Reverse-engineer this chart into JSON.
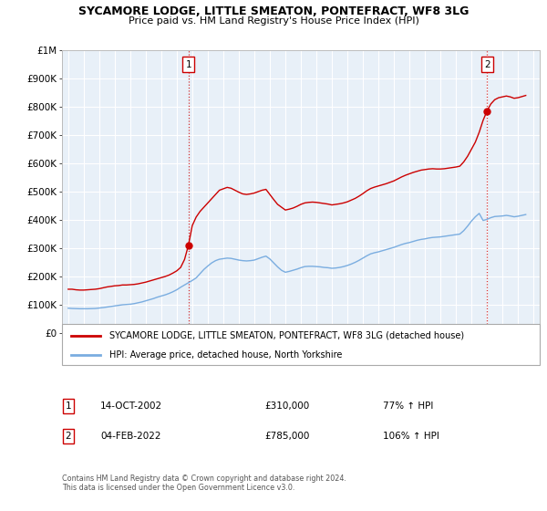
{
  "title": "SYCAMORE LODGE, LITTLE SMEATON, PONTEFRACT, WF8 3LG",
  "subtitle": "Price paid vs. HM Land Registry's House Price Index (HPI)",
  "ylim": [
    0,
    1000000
  ],
  "yticks": [
    0,
    100000,
    200000,
    300000,
    400000,
    500000,
    600000,
    700000,
    800000,
    900000,
    1000000
  ],
  "ytick_labels": [
    "£0",
    "£100K",
    "£200K",
    "£300K",
    "£400K",
    "£500K",
    "£600K",
    "£700K",
    "£800K",
    "£900K",
    "£1M"
  ],
  "red_line_color": "#cc0000",
  "blue_line_color": "#7aade0",
  "chart_bg_color": "#e8f0f8",
  "background_color": "#ffffff",
  "grid_color": "#ffffff",
  "legend_label_red": "SYCAMORE LODGE, LITTLE SMEATON, PONTEFRACT, WF8 3LG (detached house)",
  "legend_label_blue": "HPI: Average price, detached house, North Yorkshire",
  "footnote": "Contains HM Land Registry data © Crown copyright and database right 2024.\nThis data is licensed under the Open Government Licence v3.0.",
  "sale1_label": "1",
  "sale1_date": "14-OCT-2002",
  "sale1_price": "£310,000",
  "sale1_hpi": "77% ↑ HPI",
  "sale2_label": "2",
  "sale2_date": "04-FEB-2022",
  "sale2_price": "£785,000",
  "sale2_hpi": "106% ↑ HPI",
  "red_hpi_data": [
    [
      1995.0,
      155000
    ],
    [
      1995.25,
      155000
    ],
    [
      1995.5,
      153000
    ],
    [
      1995.75,
      152000
    ],
    [
      1996.0,
      152000
    ],
    [
      1996.25,
      153000
    ],
    [
      1996.5,
      154000
    ],
    [
      1996.75,
      155000
    ],
    [
      1997.0,
      157000
    ],
    [
      1997.25,
      160000
    ],
    [
      1997.5,
      163000
    ],
    [
      1997.75,
      165000
    ],
    [
      1998.0,
      167000
    ],
    [
      1998.25,
      168000
    ],
    [
      1998.5,
      170000
    ],
    [
      1998.75,
      170000
    ],
    [
      1999.0,
      171000
    ],
    [
      1999.25,
      172000
    ],
    [
      1999.5,
      174000
    ],
    [
      1999.75,
      177000
    ],
    [
      2000.0,
      180000
    ],
    [
      2000.25,
      184000
    ],
    [
      2000.5,
      188000
    ],
    [
      2000.75,
      192000
    ],
    [
      2001.0,
      196000
    ],
    [
      2001.25,
      200000
    ],
    [
      2001.5,
      205000
    ],
    [
      2001.75,
      212000
    ],
    [
      2002.0,
      220000
    ],
    [
      2002.25,
      232000
    ],
    [
      2002.5,
      260000
    ],
    [
      2002.75,
      310000
    ],
    [
      2003.0,
      380000
    ],
    [
      2003.25,
      410000
    ],
    [
      2003.5,
      430000
    ],
    [
      2003.75,
      445000
    ],
    [
      2004.0,
      460000
    ],
    [
      2004.25,
      475000
    ],
    [
      2004.5,
      490000
    ],
    [
      2004.75,
      505000
    ],
    [
      2005.0,
      510000
    ],
    [
      2005.25,
      515000
    ],
    [
      2005.5,
      512000
    ],
    [
      2005.75,
      505000
    ],
    [
      2006.0,
      498000
    ],
    [
      2006.25,
      492000
    ],
    [
      2006.5,
      490000
    ],
    [
      2006.75,
      492000
    ],
    [
      2007.0,
      495000
    ],
    [
      2007.25,
      500000
    ],
    [
      2007.5,
      505000
    ],
    [
      2007.75,
      508000
    ],
    [
      2008.0,
      490000
    ],
    [
      2008.25,
      472000
    ],
    [
      2008.5,
      455000
    ],
    [
      2008.75,
      445000
    ],
    [
      2009.0,
      435000
    ],
    [
      2009.25,
      438000
    ],
    [
      2009.5,
      442000
    ],
    [
      2009.75,
      448000
    ],
    [
      2010.0,
      455000
    ],
    [
      2010.25,
      460000
    ],
    [
      2010.5,
      462000
    ],
    [
      2010.75,
      463000
    ],
    [
      2011.0,
      462000
    ],
    [
      2011.25,
      460000
    ],
    [
      2011.5,
      458000
    ],
    [
      2011.75,
      456000
    ],
    [
      2012.0,
      453000
    ],
    [
      2012.25,
      455000
    ],
    [
      2012.5,
      457000
    ],
    [
      2012.75,
      460000
    ],
    [
      2013.0,
      464000
    ],
    [
      2013.25,
      470000
    ],
    [
      2013.5,
      476000
    ],
    [
      2013.75,
      484000
    ],
    [
      2014.0,
      493000
    ],
    [
      2014.25,
      503000
    ],
    [
      2014.5,
      511000
    ],
    [
      2014.75,
      516000
    ],
    [
      2015.0,
      520000
    ],
    [
      2015.25,
      524000
    ],
    [
      2015.5,
      528000
    ],
    [
      2015.75,
      533000
    ],
    [
      2016.0,
      538000
    ],
    [
      2016.25,
      545000
    ],
    [
      2016.5,
      552000
    ],
    [
      2016.75,
      558000
    ],
    [
      2017.0,
      563000
    ],
    [
      2017.25,
      568000
    ],
    [
      2017.5,
      572000
    ],
    [
      2017.75,
      576000
    ],
    [
      2018.0,
      578000
    ],
    [
      2018.25,
      580000
    ],
    [
      2018.5,
      581000
    ],
    [
      2018.75,
      580000
    ],
    [
      2019.0,
      580000
    ],
    [
      2019.25,
      581000
    ],
    [
      2019.5,
      583000
    ],
    [
      2019.75,
      585000
    ],
    [
      2020.0,
      587000
    ],
    [
      2020.25,
      590000
    ],
    [
      2020.5,
      605000
    ],
    [
      2020.75,
      625000
    ],
    [
      2021.0,
      650000
    ],
    [
      2021.25,
      675000
    ],
    [
      2021.5,
      710000
    ],
    [
      2021.75,
      752000
    ],
    [
      2022.0,
      785000
    ],
    [
      2022.25,
      810000
    ],
    [
      2022.5,
      825000
    ],
    [
      2022.75,
      832000
    ],
    [
      2023.0,
      835000
    ],
    [
      2023.25,
      838000
    ],
    [
      2023.5,
      835000
    ],
    [
      2023.75,
      830000
    ],
    [
      2024.0,
      832000
    ],
    [
      2024.25,
      836000
    ],
    [
      2024.5,
      840000
    ]
  ],
  "blue_hpi_data": [
    [
      1995.0,
      88000
    ],
    [
      1995.25,
      87000
    ],
    [
      1995.5,
      86500
    ],
    [
      1995.75,
      86000
    ],
    [
      1996.0,
      86000
    ],
    [
      1996.25,
      86000
    ],
    [
      1996.5,
      86500
    ],
    [
      1996.75,
      87000
    ],
    [
      1997.0,
      88500
    ],
    [
      1997.25,
      90000
    ],
    [
      1997.5,
      92000
    ],
    [
      1997.75,
      94000
    ],
    [
      1998.0,
      96000
    ],
    [
      1998.25,
      98000
    ],
    [
      1998.5,
      100000
    ],
    [
      1998.75,
      101000
    ],
    [
      1999.0,
      102000
    ],
    [
      1999.25,
      104000
    ],
    [
      1999.5,
      107000
    ],
    [
      1999.75,
      110000
    ],
    [
      2000.0,
      114000
    ],
    [
      2000.25,
      118000
    ],
    [
      2000.5,
      122000
    ],
    [
      2000.75,
      127000
    ],
    [
      2001.0,
      131000
    ],
    [
      2001.25,
      135000
    ],
    [
      2001.5,
      140000
    ],
    [
      2001.75,
      146000
    ],
    [
      2002.0,
      153000
    ],
    [
      2002.25,
      162000
    ],
    [
      2002.5,
      170000
    ],
    [
      2002.75,
      178000
    ],
    [
      2003.0,
      186000
    ],
    [
      2003.25,
      195000
    ],
    [
      2003.5,
      210000
    ],
    [
      2003.75,
      225000
    ],
    [
      2004.0,
      237000
    ],
    [
      2004.25,
      248000
    ],
    [
      2004.5,
      256000
    ],
    [
      2004.75,
      261000
    ],
    [
      2005.0,
      263000
    ],
    [
      2005.25,
      265000
    ],
    [
      2005.5,
      264000
    ],
    [
      2005.75,
      261000
    ],
    [
      2006.0,
      258000
    ],
    [
      2006.25,
      256000
    ],
    [
      2006.5,
      255000
    ],
    [
      2006.75,
      256000
    ],
    [
      2007.0,
      258000
    ],
    [
      2007.25,
      263000
    ],
    [
      2007.5,
      268000
    ],
    [
      2007.75,
      272000
    ],
    [
      2008.0,
      262000
    ],
    [
      2008.25,
      248000
    ],
    [
      2008.5,
      234000
    ],
    [
      2008.75,
      222000
    ],
    [
      2009.0,
      215000
    ],
    [
      2009.25,
      218000
    ],
    [
      2009.5,
      222000
    ],
    [
      2009.75,
      226000
    ],
    [
      2010.0,
      231000
    ],
    [
      2010.25,
      235000
    ],
    [
      2010.5,
      236000
    ],
    [
      2010.75,
      236000
    ],
    [
      2011.0,
      235000
    ],
    [
      2011.25,
      234000
    ],
    [
      2011.5,
      232000
    ],
    [
      2011.75,
      231000
    ],
    [
      2012.0,
      229000
    ],
    [
      2012.25,
      230000
    ],
    [
      2012.5,
      232000
    ],
    [
      2012.75,
      235000
    ],
    [
      2013.0,
      239000
    ],
    [
      2013.25,
      244000
    ],
    [
      2013.5,
      250000
    ],
    [
      2013.75,
      257000
    ],
    [
      2014.0,
      265000
    ],
    [
      2014.25,
      273000
    ],
    [
      2014.5,
      280000
    ],
    [
      2014.75,
      284000
    ],
    [
      2015.0,
      287000
    ],
    [
      2015.25,
      291000
    ],
    [
      2015.5,
      295000
    ],
    [
      2015.75,
      299000
    ],
    [
      2016.0,
      303000
    ],
    [
      2016.25,
      308000
    ],
    [
      2016.5,
      313000
    ],
    [
      2016.75,
      317000
    ],
    [
      2017.0,
      320000
    ],
    [
      2017.25,
      324000
    ],
    [
      2017.5,
      328000
    ],
    [
      2017.75,
      331000
    ],
    [
      2018.0,
      333000
    ],
    [
      2018.25,
      336000
    ],
    [
      2018.5,
      338000
    ],
    [
      2018.75,
      339000
    ],
    [
      2019.0,
      340000
    ],
    [
      2019.25,
      342000
    ],
    [
      2019.5,
      344000
    ],
    [
      2019.75,
      346000
    ],
    [
      2020.0,
      348000
    ],
    [
      2020.25,
      350000
    ],
    [
      2020.5,
      362000
    ],
    [
      2020.75,
      378000
    ],
    [
      2021.0,
      396000
    ],
    [
      2021.25,
      411000
    ],
    [
      2021.5,
      423000
    ],
    [
      2021.75,
      398000
    ],
    [
      2022.0,
      402000
    ],
    [
      2022.25,
      408000
    ],
    [
      2022.5,
      412000
    ],
    [
      2022.75,
      413000
    ],
    [
      2023.0,
      414000
    ],
    [
      2023.25,
      416000
    ],
    [
      2023.5,
      414000
    ],
    [
      2023.75,
      411000
    ],
    [
      2024.0,
      413000
    ],
    [
      2024.25,
      416000
    ],
    [
      2024.5,
      419000
    ]
  ],
  "sale1_x": 2002.75,
  "sale1_y": 310000,
  "sale2_x": 2022.0,
  "sale2_y": 785000,
  "xlim_left": 1994.6,
  "xlim_right": 2025.4
}
